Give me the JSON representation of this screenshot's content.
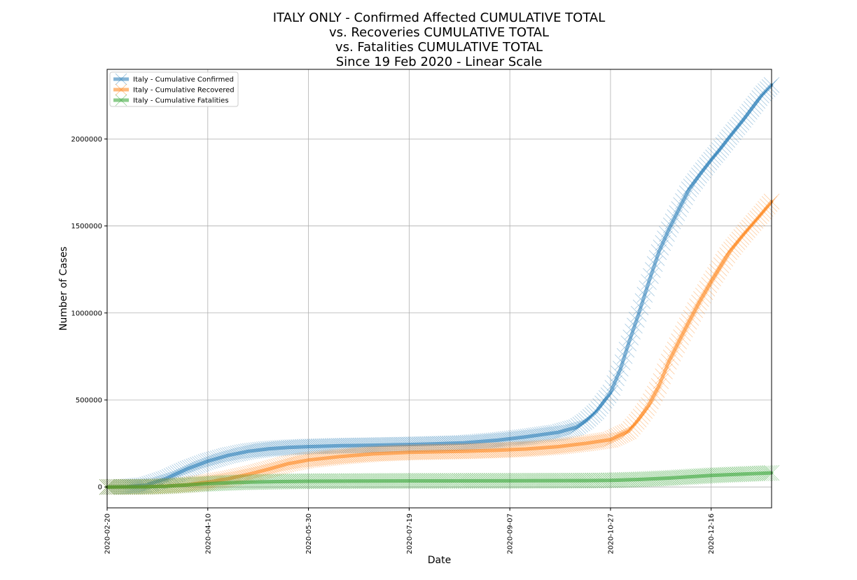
{
  "chart_data": {
    "type": "line",
    "title_lines": [
      "ITALY ONLY - Confirmed Affected CUMULATIVE TOTAL",
      "vs. Recoveries CUMULATIVE TOTAL",
      "vs. Fatalities CUMULATIVE TOTAL",
      "Since 19 Feb 2020 - Linear Scale"
    ],
    "xlabel": "Date",
    "ylabel": "Number of Cases",
    "x_ticks": [
      "2020-02-20",
      "2020-04-10",
      "2020-05-30",
      "2020-07-19",
      "2020-09-07",
      "2020-10-27",
      "2020-12-16"
    ],
    "y_ticks": [
      0,
      500000,
      1000000,
      1500000,
      2000000
    ],
    "y_tick_labels": [
      "0",
      "500000",
      "1000000",
      "1500000",
      "2000000"
    ],
    "xlim": [
      "2020-02-20",
      "2021-01-15"
    ],
    "ylim": [
      -120000,
      2400000
    ],
    "grid": true,
    "legend_position": "top-left",
    "series": [
      {
        "name": "Italy - Cumulative Confirmed",
        "color": "#1f77b4",
        "points": [
          [
            "2020-02-20",
            0
          ],
          [
            "2020-03-01",
            1700
          ],
          [
            "2020-03-10",
            10000
          ],
          [
            "2020-03-20",
            47000
          ],
          [
            "2020-03-31",
            105000
          ],
          [
            "2020-04-10",
            148000
          ],
          [
            "2020-04-20",
            181000
          ],
          [
            "2020-04-30",
            205000
          ],
          [
            "2020-05-10",
            219000
          ],
          [
            "2020-05-20",
            227000
          ],
          [
            "2020-05-30",
            232000
          ],
          [
            "2020-06-15",
            237000
          ],
          [
            "2020-07-01",
            240000
          ],
          [
            "2020-07-19",
            244000
          ],
          [
            "2020-08-01",
            248000
          ],
          [
            "2020-08-15",
            253000
          ],
          [
            "2020-09-01",
            269000
          ],
          [
            "2020-09-15",
            288000
          ],
          [
            "2020-10-01",
            314000
          ],
          [
            "2020-10-10",
            343000
          ],
          [
            "2020-10-15",
            381000
          ],
          [
            "2020-10-20",
            434000
          ],
          [
            "2020-10-27",
            542000
          ],
          [
            "2020-11-01",
            680000
          ],
          [
            "2020-11-05",
            825000
          ],
          [
            "2020-11-10",
            995000
          ],
          [
            "2020-11-15",
            1178000
          ],
          [
            "2020-11-20",
            1350000
          ],
          [
            "2020-11-25",
            1480000
          ],
          [
            "2020-12-01",
            1620000
          ],
          [
            "2020-12-05",
            1710000
          ],
          [
            "2020-12-10",
            1790000
          ],
          [
            "2020-12-16",
            1880000
          ],
          [
            "2020-12-20",
            1935000
          ],
          [
            "2020-12-25",
            2010000
          ],
          [
            "2021-01-01",
            2110000
          ],
          [
            "2021-01-10",
            2250000
          ],
          [
            "2021-01-15",
            2310000
          ]
        ]
      },
      {
        "name": "Italy - Cumulative Recovered",
        "color": "#ff7f0e",
        "points": [
          [
            "2020-02-20",
            0
          ],
          [
            "2020-03-10",
            1000
          ],
          [
            "2020-03-20",
            5000
          ],
          [
            "2020-03-31",
            13000
          ],
          [
            "2020-04-10",
            28000
          ],
          [
            "2020-04-20",
            47000
          ],
          [
            "2020-05-01",
            75000
          ],
          [
            "2020-05-10",
            102000
          ],
          [
            "2020-05-20",
            134000
          ],
          [
            "2020-05-30",
            155000
          ],
          [
            "2020-06-15",
            175000
          ],
          [
            "2020-07-01",
            190000
          ],
          [
            "2020-07-19",
            199000
          ],
          [
            "2020-08-01",
            202000
          ],
          [
            "2020-08-15",
            205000
          ],
          [
            "2020-09-01",
            211000
          ],
          [
            "2020-09-15",
            218000
          ],
          [
            "2020-10-01",
            232000
          ],
          [
            "2020-10-15",
            251000
          ],
          [
            "2020-10-27",
            272000
          ],
          [
            "2020-11-05",
            320000
          ],
          [
            "2020-11-10",
            388000
          ],
          [
            "2020-11-15",
            470000
          ],
          [
            "2020-11-20",
            580000
          ],
          [
            "2020-11-25",
            720000
          ],
          [
            "2020-12-01",
            860000
          ],
          [
            "2020-12-05",
            950000
          ],
          [
            "2020-12-10",
            1060000
          ],
          [
            "2020-12-16",
            1180000
          ],
          [
            "2020-12-25",
            1350000
          ],
          [
            "2021-01-01",
            1450000
          ],
          [
            "2021-01-10",
            1570000
          ],
          [
            "2021-01-15",
            1640000
          ]
        ]
      },
      {
        "name": "Italy - Cumulative Fatalities",
        "color": "#2ca02c",
        "points": [
          [
            "2020-02-20",
            0
          ],
          [
            "2020-03-10",
            600
          ],
          [
            "2020-03-20",
            4000
          ],
          [
            "2020-03-31",
            12000
          ],
          [
            "2020-04-10",
            19000
          ],
          [
            "2020-04-20",
            24000
          ],
          [
            "2020-05-01",
            28000
          ],
          [
            "2020-05-15",
            31000
          ],
          [
            "2020-05-30",
            33000
          ],
          [
            "2020-07-19",
            35000
          ],
          [
            "2020-09-07",
            35500
          ],
          [
            "2020-10-15",
            36500
          ],
          [
            "2020-10-27",
            38000
          ],
          [
            "2020-11-10",
            43000
          ],
          [
            "2020-11-25",
            51000
          ],
          [
            "2020-12-16",
            66000
          ],
          [
            "2021-01-01",
            74000
          ],
          [
            "2021-01-15",
            81000
          ]
        ]
      }
    ]
  }
}
